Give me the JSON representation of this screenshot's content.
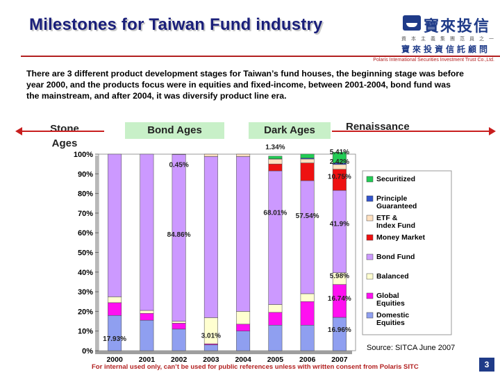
{
  "header": {
    "title": "Milestones for Taiwan Fund industry",
    "logo_text": "寶來投信",
    "logo_tagline": "資本主義集團范員之一",
    "logo_sub": "寶來投資信託顧問",
    "logo_en": "Polaris International Securities Investment Trust Co.,Ltd."
  },
  "intro": "There are 3 different product development stages for Taiwan’s fund houses, the beginning stage was before year 2000, and the products focus were in equities and fixed-income, between 2001-2004, bond fund was the mainstream, and after 2004, it was diversify product line era.",
  "stages": {
    "stone": "Stone Ages",
    "bond": "Bond Ages",
    "dark": "Dark Ages",
    "renaissance": "Renaissance"
  },
  "footer": {
    "source": "Source: SITCA June 2007",
    "disclaimer": "For internal used only, can’t be used for public references unless with written consent from Polaris SITC",
    "page_number": "3"
  },
  "colors": {
    "title": "#1a1f7a",
    "accent_red": "#c81e1e",
    "stage_bg": "#c8f0c8"
  },
  "chart_data": {
    "type": "bar",
    "stacked": true,
    "categories": [
      "2000",
      "2001",
      "2002",
      "2003",
      "2004",
      "2005",
      "2006",
      "2007"
    ],
    "ylim": [
      0,
      100
    ],
    "yticks": [
      "0%",
      "10%",
      "20%",
      "30%",
      "40%",
      "50%",
      "60%",
      "70%",
      "80%",
      "90%",
      "100%"
    ],
    "series": [
      {
        "name": "Domestic Equities",
        "color": "#8f9ff0",
        "values": [
          17.93,
          15.5,
          11.0,
          3.01,
          10.0,
          13.0,
          13.0,
          16.96
        ]
      },
      {
        "name": "Global Equities",
        "color": "#ff10f0",
        "values": [
          6.5,
          3.5,
          3.0,
          0.5,
          3.5,
          6.5,
          12.0,
          16.74
        ]
      },
      {
        "name": "Balanced",
        "color": "#ffffd0",
        "values": [
          3.0,
          1.5,
          1.0,
          13.3,
          6.5,
          4.0,
          4.0,
          5.98
        ]
      },
      {
        "name": "Bond Fund",
        "color": "#cc99ff",
        "values": [
          72.57,
          79.5,
          84.86,
          82.0,
          78.8,
          68.01,
          57.54,
          41.9
        ]
      },
      {
        "name": "Money Market",
        "color": "#ee1111",
        "values": [
          0,
          0,
          0,
          0,
          0,
          3.5,
          9.0,
          10.75
        ]
      },
      {
        "name": "ETF & Index Fund",
        "color": "#ffe0c0",
        "values": [
          0,
          0,
          0.14,
          1.19,
          1.2,
          2.5,
          2.0,
          2.42
        ]
      },
      {
        "name": "Principle Guaranteed",
        "color": "#3355cc",
        "values": [
          0,
          0,
          0,
          0,
          0,
          0.15,
          0.5,
          0.84
        ]
      },
      {
        "name": "Securitized",
        "color": "#22cc55",
        "values": [
          0,
          0,
          0,
          0,
          0,
          1.34,
          2.0,
          5.41
        ]
      }
    ],
    "data_labels": [
      {
        "text": "17.93%",
        "category": "2000",
        "y": 5
      },
      {
        "text": "0.45%",
        "category": "2002",
        "y": 93.5
      },
      {
        "text": "84.86%",
        "category": "2002",
        "y": 58
      },
      {
        "text": "3.01%",
        "category": "2003",
        "y": 6.5
      },
      {
        "text": "1.34%",
        "category": "2005",
        "y": 102.5
      },
      {
        "text": "68.01%",
        "category": "2005",
        "y": 69
      },
      {
        "text": "57.54%",
        "category": "2006",
        "y": 67.5
      },
      {
        "text": "5.41%",
        "category": "2007",
        "y": 100
      },
      {
        "text": "2.42%",
        "category": "2007",
        "y": 95
      },
      {
        "text": "10.75%",
        "category": "2007",
        "y": 87.5
      },
      {
        "text": "41.9%",
        "category": "2007",
        "y": 63.5
      },
      {
        "text": "5.98%",
        "category": "2007",
        "y": 37
      },
      {
        "text": "16.74%",
        "category": "2007",
        "y": 25.5
      },
      {
        "text": "16.96%",
        "category": "2007",
        "y": 9.5
      }
    ],
    "legend_position": "right"
  }
}
